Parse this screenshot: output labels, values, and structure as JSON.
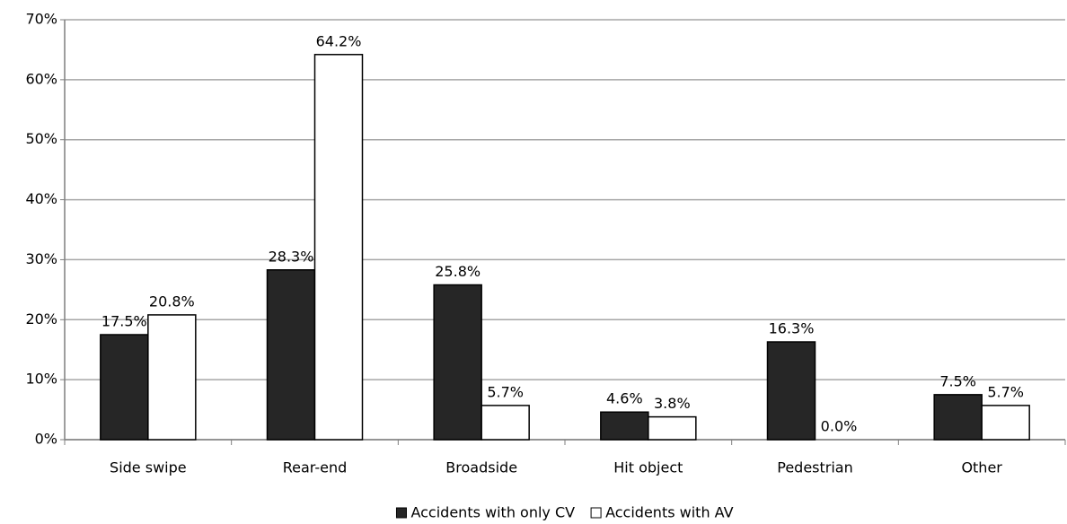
{
  "chart_data": {
    "type": "bar",
    "categories": [
      "Side swipe",
      "Rear-end",
      "Broadside",
      "Hit object",
      "Pedestrian",
      "Other"
    ],
    "series": [
      {
        "name": "Accidents with only CV",
        "color": "#262626",
        "values": [
          17.5,
          28.3,
          25.8,
          4.6,
          16.3,
          7.5
        ],
        "value_labels": [
          "17.5%",
          "28.3%",
          "25.8%",
          "4.6%",
          "16.3%",
          "7.5%"
        ]
      },
      {
        "name": "Accidents with AV",
        "color": "#ffffff",
        "values": [
          20.8,
          64.2,
          5.7,
          3.8,
          0.0,
          5.7
        ],
        "value_labels": [
          "20.8%",
          "64.2%",
          "5.7%",
          "3.8%",
          "0.0%",
          "5.7%"
        ]
      }
    ],
    "ylim": [
      0,
      70
    ],
    "yticks": [
      {
        "value": 0,
        "label": "0%"
      },
      {
        "value": 10,
        "label": "10%"
      },
      {
        "value": 20,
        "label": "20%"
      },
      {
        "value": 30,
        "label": "30%"
      },
      {
        "value": 40,
        "label": "40%"
      },
      {
        "value": 50,
        "label": "50%"
      },
      {
        "value": 60,
        "label": "60%"
      },
      {
        "value": 70,
        "label": "70%"
      }
    ],
    "grid": true,
    "legend": "bottom"
  }
}
